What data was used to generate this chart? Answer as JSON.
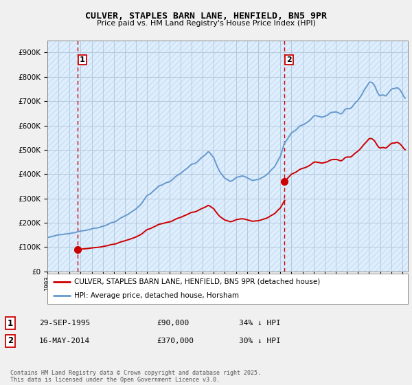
{
  "title": "CULVER, STAPLES BARN LANE, HENFIELD, BN5 9PR",
  "subtitle": "Price paid vs. HM Land Registry's House Price Index (HPI)",
  "ylim": [
    0,
    950000
  ],
  "xlim_start": 1993.0,
  "xlim_end": 2025.5,
  "purchase1_date": 1995.75,
  "purchase1_price": 90000,
  "purchase2_date": 2014.37,
  "purchase2_price": 370000,
  "legend_property": "CULVER, STAPLES BARN LANE, HENFIELD, BN5 9PR (detached house)",
  "legend_hpi": "HPI: Average price, detached house, Horsham",
  "info1_date": "29-SEP-1995",
  "info1_price": "£90,000",
  "info1_hpi": "34% ↓ HPI",
  "info2_date": "16-MAY-2014",
  "info2_price": "£370,000",
  "info2_hpi": "30% ↓ HPI",
  "footer": "Contains HM Land Registry data © Crown copyright and database right 2025.\nThis data is licensed under the Open Government Licence v3.0.",
  "property_color": "#cc0000",
  "hpi_color": "#6699cc",
  "hpi_fill_color": "#ddeeff",
  "background_color": "#f0f0f0",
  "plot_bg_color": "#ddeeff",
  "hatch_color": "#c8d8e8",
  "purchase_marker_color": "#cc0000",
  "vline_color": "#cc0000",
  "grid_color": "#b0c4d8"
}
